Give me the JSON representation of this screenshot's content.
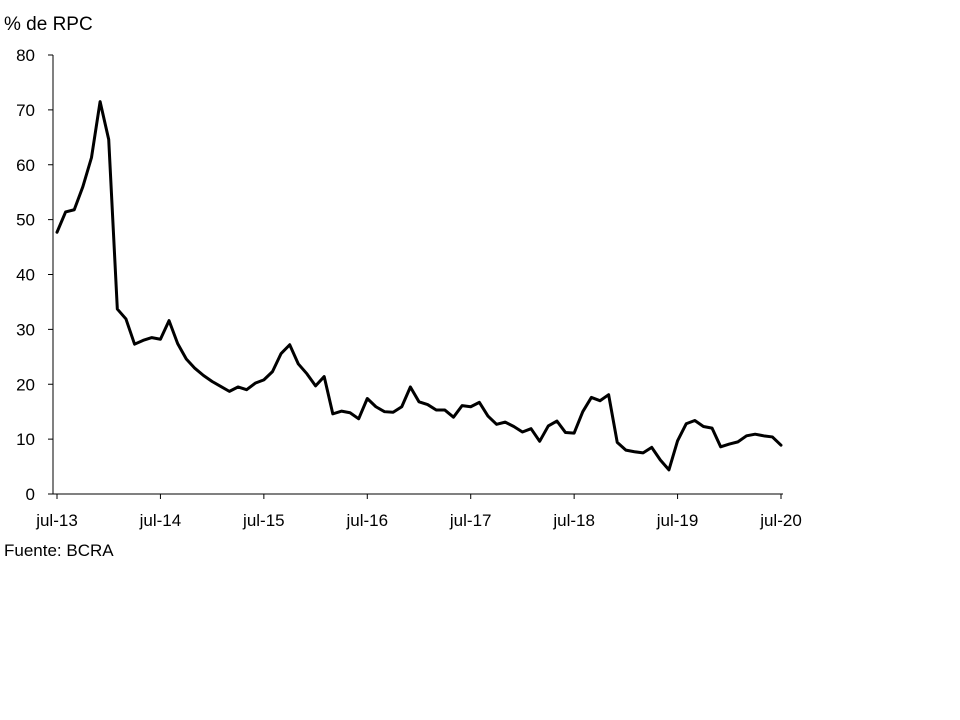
{
  "chart_data": {
    "type": "line",
    "ylabel": "% de RPC",
    "source": "Fuente: BCRA",
    "ylim": [
      0,
      80
    ],
    "yticks": [
      0,
      10,
      20,
      30,
      40,
      50,
      60,
      70,
      80
    ],
    "x_start": "2013-07",
    "xticks": [
      {
        "label": "jul-13",
        "index": 0
      },
      {
        "label": "jul-14",
        "index": 12
      },
      {
        "label": "jul-15",
        "index": 24
      },
      {
        "label": "jul-16",
        "index": 36
      },
      {
        "label": "jul-17",
        "index": 48
      },
      {
        "label": "jul-18",
        "index": 60
      },
      {
        "label": "jul-19",
        "index": 72
      },
      {
        "label": "jul-20",
        "index": 84
      }
    ],
    "grid": false,
    "legend": "none",
    "series": [
      {
        "color": "#000000",
        "values": [
          47.7,
          51.4,
          51.8,
          56.0,
          61.3,
          71.5,
          64.6,
          33.7,
          31.9,
          27.3,
          28.0,
          28.5,
          28.2,
          31.6,
          27.4,
          24.6,
          22.9,
          21.6,
          20.5,
          19.6,
          18.7,
          19.5,
          19.0,
          20.2,
          20.8,
          22.3,
          25.6,
          27.2,
          23.7,
          21.9,
          19.7,
          21.4,
          14.6,
          15.1,
          14.8,
          13.7,
          17.4,
          15.9,
          15.0,
          14.9,
          15.9,
          19.5,
          16.8,
          16.3,
          15.3,
          15.3,
          14.0,
          16.1,
          15.9,
          16.7,
          14.2,
          12.7,
          13.1,
          12.3,
          11.3,
          11.9,
          9.6,
          12.4,
          13.3,
          11.2,
          11.1,
          15.0,
          17.6,
          17.0,
          18.1,
          9.4,
          8.0,
          7.7,
          7.5,
          8.5,
          6.2,
          4.4,
          9.7,
          12.8,
          13.4,
          12.3,
          12.0,
          8.6,
          9.1,
          9.5,
          10.6,
          10.9,
          10.6,
          10.4,
          8.9
        ]
      }
    ]
  }
}
